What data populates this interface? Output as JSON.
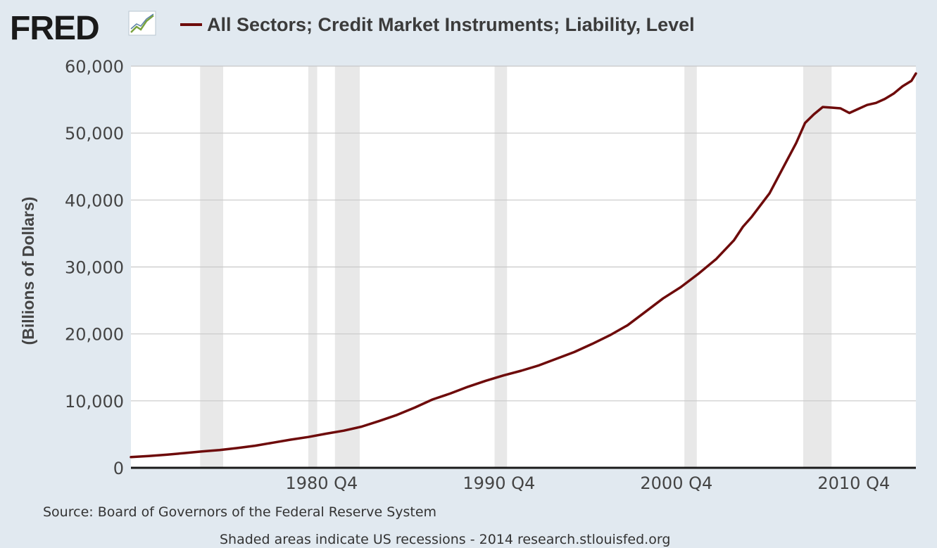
{
  "header": {
    "logo_text": "FRED",
    "logo_icon": "trend-chart-icon",
    "series_title": "All Sectors; Credit Market Instruments; Liability, Level"
  },
  "footer": {
    "source": "Source: Board of Governors of the Federal Reserve System",
    "note": "Shaded areas indicate US recessions - 2014 research.stlouisfed.org"
  },
  "colors": {
    "background": "#e1e9f0",
    "plot_background": "#ffffff",
    "series_line": "#6e0b0b",
    "recession_shade": "#e8e8e8",
    "gridline": "#c8c8c8",
    "axis": "#1a1a1a",
    "text": "#444444"
  },
  "chart_data": {
    "type": "line",
    "title": "All Sectors; Credit Market Instruments; Liability, Level",
    "xlabel": "",
    "ylabel": "(Billions of Dollars)",
    "ylim": [
      0,
      60000
    ],
    "xlim": [
      1970.0,
      2014.25
    ],
    "yticks": [
      0,
      10000,
      20000,
      30000,
      40000,
      50000,
      60000
    ],
    "yticklabels": [
      "0",
      "10,000",
      "20,000",
      "30,000",
      "40,000",
      "50,000",
      "60,000"
    ],
    "xticks": [
      1980.75,
      1990.75,
      2000.75,
      2010.75
    ],
    "xticklabels": [
      "1980 Q4",
      "1990 Q4",
      "2000 Q4",
      "2010 Q4"
    ],
    "grid": true,
    "legend": "top",
    "recessions": [
      [
        1973.9,
        1975.2
      ],
      [
        1980.0,
        1980.5
      ],
      [
        1981.5,
        1982.9
      ],
      [
        1990.5,
        1991.2
      ],
      [
        2001.2,
        2001.9
      ],
      [
        2007.9,
        2009.5
      ]
    ],
    "series": [
      {
        "name": "All Sectors; Credit Market Instruments; Liability, Level",
        "x": [
          1970.0,
          1971.0,
          1972.0,
          1973.0,
          1974.0,
          1975.0,
          1976.0,
          1977.0,
          1978.0,
          1979.0,
          1980.0,
          1981.0,
          1982.0,
          1983.0,
          1984.0,
          1985.0,
          1986.0,
          1986.5,
          1987.0,
          1988.0,
          1989.0,
          1990.0,
          1991.0,
          1992.0,
          1993.0,
          1994.0,
          1995.0,
          1996.0,
          1997.0,
          1998.0,
          1999.0,
          2000.0,
          2001.0,
          2002.0,
          2003.0,
          2004.0,
          2004.5,
          2005.0,
          2006.0,
          2007.0,
          2007.5,
          2008.0,
          2008.5,
          2009.0,
          2009.5,
          2010.0,
          2010.5,
          2011.0,
          2011.5,
          2012.0,
          2012.5,
          2013.0,
          2013.5,
          2014.0,
          2014.25
        ],
        "values": [
          1600,
          1750,
          1950,
          2200,
          2450,
          2650,
          2950,
          3300,
          3750,
          4200,
          4600,
          5100,
          5550,
          6150,
          7000,
          7900,
          9000,
          9600,
          10200,
          11100,
          12100,
          13000,
          13800,
          14500,
          15300,
          16300,
          17300,
          18500,
          19800,
          21300,
          23300,
          25300,
          27000,
          29000,
          31200,
          34000,
          36000,
          37500,
          41000,
          46000,
          48500,
          51500,
          52800,
          53900,
          53800,
          53700,
          53000,
          53600,
          54200,
          54500,
          55100,
          55900,
          57000,
          57800,
          58900
        ]
      }
    ]
  }
}
